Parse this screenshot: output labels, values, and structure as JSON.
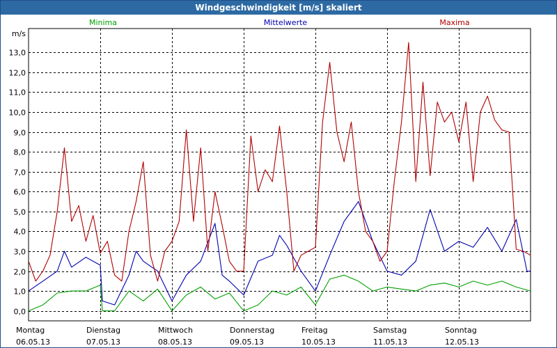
{
  "chart_data": {
    "type": "line",
    "title": "Windgeschwindigkeit [m/s] skaliert",
    "ylabel": "m/s",
    "ylim": [
      -0.5,
      14.2
    ],
    "xlim": [
      0,
      7
    ],
    "yticks": [
      "0,0",
      "1,0",
      "2,0",
      "3,0",
      "4,0",
      "5,0",
      "6,0",
      "7,0",
      "8,0",
      "9,0",
      "10,0",
      "11,0",
      "12,0",
      "13,0"
    ],
    "day_labels": [
      {
        "day": "Montag",
        "date": "06.05.13"
      },
      {
        "day": "Dienstag",
        "date": "07.05.13"
      },
      {
        "day": "Mittwoch",
        "date": "08.05.13"
      },
      {
        "day": "Donnerstag",
        "date": "09.05.13"
      },
      {
        "day": "Freitag",
        "date": "10.05.13"
      },
      {
        "day": "Samstag",
        "date": "11.05.13"
      },
      {
        "day": "Sonntag",
        "date": "12.05.13"
      }
    ],
    "series": [
      {
        "name": "Minima",
        "color": "#00a000",
        "x": [
          0,
          0.2,
          0.4,
          0.6,
          0.8,
          1.0,
          1.03,
          1.2,
          1.4,
          1.6,
          1.8,
          2.0,
          2.2,
          2.4,
          2.6,
          2.8,
          3.0,
          3.2,
          3.4,
          3.6,
          3.8,
          4.0,
          4.2,
          4.4,
          4.6,
          4.8,
          5.0,
          5.2,
          5.4,
          5.6,
          5.8,
          6.0,
          6.2,
          6.4,
          6.6,
          6.8,
          7.0
        ],
        "values": [
          0,
          0.3,
          0.9,
          1.0,
          1.0,
          1.3,
          0,
          0,
          1.0,
          0.5,
          1.1,
          0,
          0.8,
          1.2,
          0.6,
          0.9,
          0,
          0.3,
          1.0,
          0.8,
          1.2,
          0.3,
          1.6,
          1.8,
          1.5,
          1.0,
          1.2,
          1.1,
          1.0,
          1.3,
          1.4,
          1.2,
          1.5,
          1.3,
          1.5,
          1.2,
          1.0
        ]
      },
      {
        "name": "Mittelwerte",
        "color": "#0000b0",
        "x": [
          0,
          0.2,
          0.4,
          0.5,
          0.6,
          0.8,
          1.0,
          1.03,
          1.2,
          1.4,
          1.5,
          1.6,
          1.8,
          2.0,
          2.2,
          2.4,
          2.6,
          2.7,
          2.8,
          3.0,
          3.2,
          3.4,
          3.5,
          3.6,
          3.8,
          4.0,
          4.2,
          4.4,
          4.6,
          4.8,
          5.0,
          5.2,
          5.4,
          5.6,
          5.8,
          6.0,
          6.2,
          6.4,
          6.6,
          6.8,
          6.95,
          7.0
        ],
        "values": [
          1.0,
          1.5,
          2.0,
          3.0,
          2.2,
          2.7,
          2.3,
          0.5,
          0.3,
          1.8,
          3.0,
          2.5,
          2.0,
          0.5,
          1.8,
          2.5,
          4.4,
          1.8,
          1.5,
          0.8,
          2.5,
          2.8,
          3.8,
          3.3,
          2.0,
          1.0,
          2.8,
          4.5,
          5.5,
          3.5,
          2.0,
          1.8,
          2.5,
          5.1,
          3.0,
          3.5,
          3.2,
          4.2,
          3.0,
          4.6,
          2.0,
          2.0
        ]
      },
      {
        "name": "Maxima",
        "color": "#b00000",
        "x": [
          0,
          0.1,
          0.2,
          0.3,
          0.4,
          0.5,
          0.6,
          0.7,
          0.8,
          0.9,
          1.0,
          1.1,
          1.2,
          1.3,
          1.4,
          1.5,
          1.6,
          1.7,
          1.8,
          1.9,
          2.0,
          2.1,
          2.2,
          2.3,
          2.4,
          2.5,
          2.6,
          2.7,
          2.8,
          2.9,
          3.0,
          3.1,
          3.2,
          3.3,
          3.4,
          3.5,
          3.6,
          3.7,
          3.8,
          3.9,
          4.0,
          4.1,
          4.2,
          4.3,
          4.4,
          4.5,
          4.6,
          4.7,
          4.8,
          4.9,
          5.0,
          5.1,
          5.2,
          5.3,
          5.4,
          5.5,
          5.6,
          5.7,
          5.8,
          5.9,
          6.0,
          6.1,
          6.2,
          6.3,
          6.4,
          6.5,
          6.6,
          6.7,
          6.8,
          6.9,
          7.0
        ],
        "values": [
          2.5,
          1.5,
          2.0,
          2.8,
          5.0,
          8.2,
          4.5,
          5.3,
          3.5,
          4.8,
          2.9,
          3.5,
          1.8,
          1.5,
          4.0,
          5.5,
          7.5,
          2.8,
          1.5,
          3.0,
          3.5,
          4.5,
          9.1,
          4.5,
          8.2,
          3.0,
          6.0,
          4.3,
          2.5,
          2.0,
          2.0,
          8.8,
          6.0,
          7.1,
          6.5,
          9.3,
          6.0,
          2.0,
          2.8,
          3.0,
          3.2,
          9.5,
          12.5,
          9.0,
          7.5,
          9.5,
          6.0,
          4.0,
          3.5,
          2.5,
          3.0,
          6.5,
          9.5,
          13.5,
          6.5,
          11.5,
          6.8,
          10.5,
          9.5,
          10.0,
          8.5,
          10.5,
          6.5,
          10.0,
          10.8,
          9.6,
          9.1,
          9.0,
          3.1,
          3.0,
          2.8
        ]
      }
    ]
  }
}
